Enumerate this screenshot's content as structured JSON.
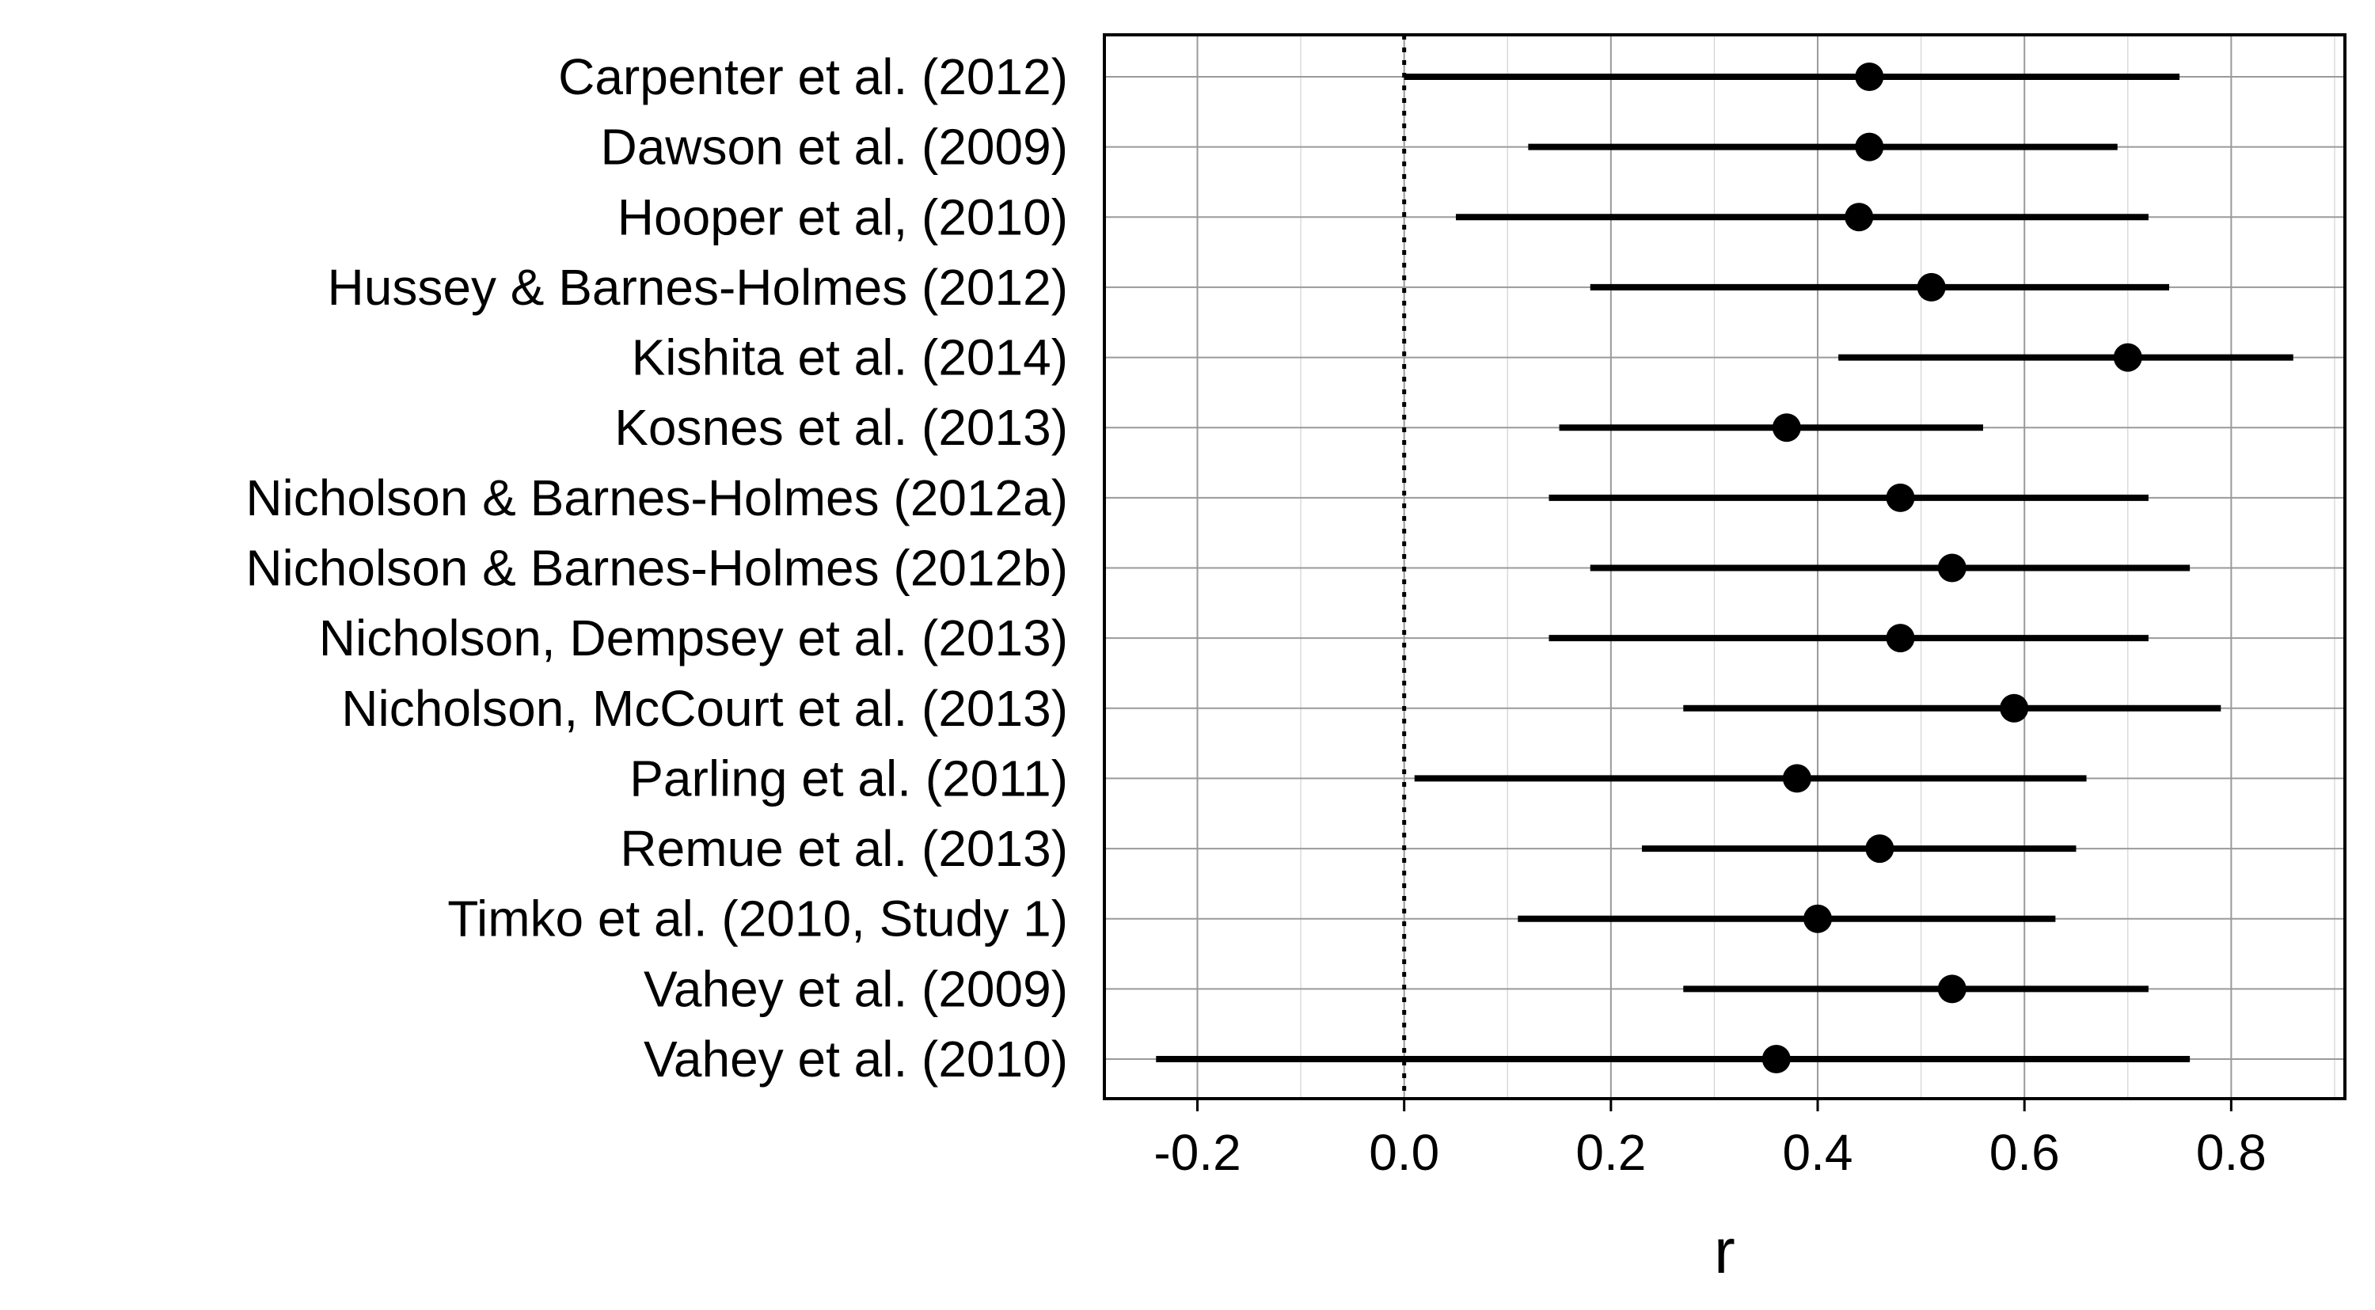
{
  "chart_data": {
    "type": "forest",
    "title": "",
    "xlabel": "r",
    "ylabel": "",
    "xlim": [
      -0.29,
      0.91
    ],
    "xticks": [
      -0.2,
      0.0,
      0.2,
      0.4,
      0.6,
      0.8
    ],
    "xtick_labels": [
      "-0.2",
      "0.0",
      "0.2",
      "0.4",
      "0.6",
      "0.8"
    ],
    "reference_line": 0.0,
    "grid": true,
    "categories": [
      "Carpenter et al. (2012)",
      "Dawson et al. (2009)",
      "Hooper et al, (2010)",
      "Hussey & Barnes-Holmes (2012)",
      "Kishita et al. (2014)",
      "Kosnes et al. (2013)",
      "Nicholson & Barnes-Holmes (2012a)",
      "Nicholson & Barnes-Holmes (2012b)",
      "Nicholson, Dempsey et al. (2013)",
      "Nicholson, McCourt et al. (2013)",
      "Parling et al. (2011)",
      "Remue et al. (2013)",
      "Timko et al. (2010, Study 1)",
      "Vahey et al. (2009)",
      "Vahey et al. (2010)"
    ],
    "estimates": [
      0.45,
      0.45,
      0.44,
      0.51,
      0.7,
      0.37,
      0.48,
      0.53,
      0.48,
      0.59,
      0.38,
      0.46,
      0.4,
      0.53,
      0.36
    ],
    "ci_lower": [
      0.0,
      0.12,
      0.05,
      0.18,
      0.42,
      0.15,
      0.14,
      0.18,
      0.14,
      0.27,
      0.01,
      0.23,
      0.11,
      0.27,
      -0.24
    ],
    "ci_upper": [
      0.75,
      0.69,
      0.72,
      0.74,
      0.86,
      0.56,
      0.72,
      0.76,
      0.72,
      0.79,
      0.66,
      0.65,
      0.63,
      0.72,
      0.76
    ]
  }
}
